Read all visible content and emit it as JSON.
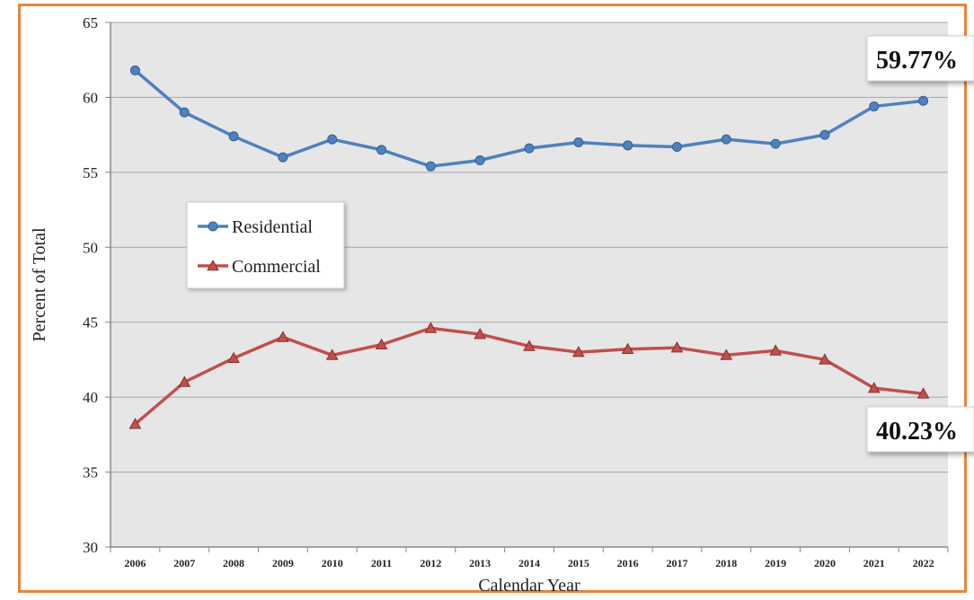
{
  "chart_data": {
    "type": "line",
    "title": "",
    "xlabel": "Calendar Year",
    "ylabel": "Percent of Total",
    "ylim": [
      30,
      65
    ],
    "yticks": [
      30,
      35,
      40,
      45,
      50,
      55,
      60,
      65
    ],
    "grid": "horizontal",
    "legend_position": "center-left",
    "categories": [
      "2006",
      "2007",
      "2008",
      "2009",
      "2010",
      "2011",
      "2012",
      "2013",
      "2014",
      "2015",
      "2016",
      "2017",
      "2018",
      "2019",
      "2020",
      "2021",
      "2022"
    ],
    "series": [
      {
        "name": "Residential",
        "marker": "circle",
        "color": "#4f81bd",
        "values": [
          61.8,
          59.0,
          57.4,
          56.0,
          57.2,
          56.5,
          55.4,
          55.8,
          56.6,
          57.0,
          56.8,
          56.7,
          57.2,
          56.9,
          57.5,
          59.4,
          59.77
        ]
      },
      {
        "name": "Commercial",
        "marker": "triangle",
        "color": "#c0504d",
        "values": [
          38.2,
          41.0,
          42.6,
          44.0,
          42.8,
          43.5,
          44.6,
          44.2,
          43.4,
          43.0,
          43.2,
          43.3,
          42.8,
          43.1,
          42.5,
          40.6,
          40.23
        ]
      }
    ],
    "annotations": [
      {
        "text": "59.77%",
        "series": "Residential"
      },
      {
        "text": "40.23%",
        "series": "Commercial"
      }
    ]
  }
}
